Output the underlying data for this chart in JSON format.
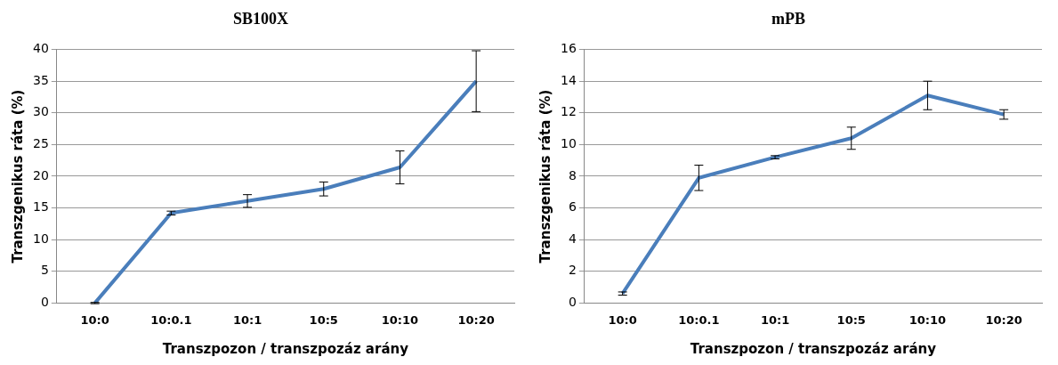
{
  "chart_data": [
    {
      "type": "line",
      "title": "SB100X",
      "xlabel": "Transzpozon / transzpozáz arány",
      "ylabel": "Transzgenikus ráta (%)",
      "categories": [
        "10:0",
        "10:0.1",
        "10:1",
        "10:5",
        "10:10",
        "10:20"
      ],
      "ylim": [
        0,
        40
      ],
      "yticks": [
        0,
        5,
        10,
        15,
        20,
        25,
        30,
        35,
        40
      ],
      "grid": "y",
      "legend": false,
      "marker": "none",
      "series": [
        {
          "color": "#4a7ebb",
          "values": [
            0,
            14.2,
            16.1,
            18.0,
            21.4,
            35.0
          ],
          "errors": [
            0.1,
            0.3,
            1.0,
            1.1,
            2.6,
            4.8
          ]
        }
      ]
    },
    {
      "type": "line",
      "title": "mPB",
      "xlabel": "Transzpozon / transzpozáz arány",
      "ylabel": "Transzgenikus ráta (%)",
      "categories": [
        "10:0",
        "10:0.1",
        "10:1",
        "10:5",
        "10:10",
        "10:20"
      ],
      "ylim": [
        0,
        16
      ],
      "yticks": [
        0,
        2,
        4,
        6,
        8,
        10,
        12,
        14,
        16
      ],
      "grid": "y",
      "legend": false,
      "marker": "none",
      "series": [
        {
          "color": "#4a7ebb",
          "values": [
            0.6,
            7.9,
            9.2,
            10.4,
            13.1,
            11.9
          ],
          "errors": [
            0.1,
            0.8,
            0.1,
            0.7,
            0.9,
            0.3
          ]
        }
      ]
    }
  ]
}
